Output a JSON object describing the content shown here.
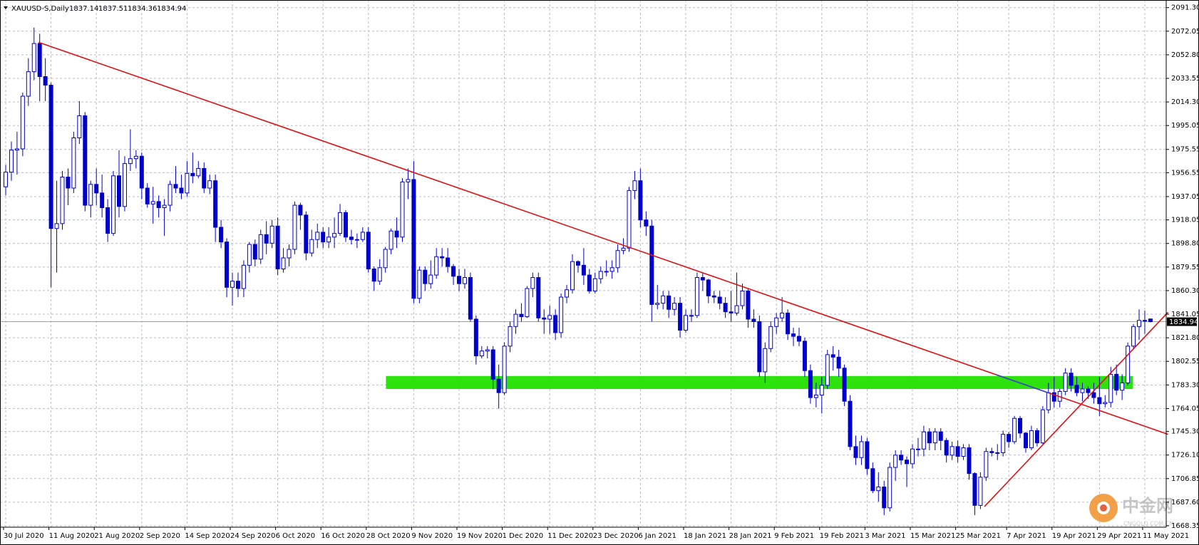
{
  "chart_data": {
    "type": "candlestick",
    "symbol": "XAUUSD-S,Daily",
    "color": "#0000cd",
    "up_fill": "#ffffff",
    "grid": true,
    "ylim": [
      1668.35,
      2091.3
    ],
    "yticks": [
      {
        "value": 2091.3,
        "label": "2091.30"
      },
      2072.05,
      {
        "value": 2052.8,
        "label": "2052.80"
      },
      2033.55,
      {
        "value": 2014.3,
        "label": "2014.30"
      },
      1995.05,
      1975.55,
      1956.55,
      1937.05,
      1918.05,
      {
        "value": 1898.8,
        "label": "1898.80"
      },
      1879.55,
      {
        "value": 1860.3,
        "label": "1860.30"
      },
      1841.05,
      {
        "value": 1821.8,
        "label": "1821.80"
      },
      1802.55,
      {
        "value": 1783.3,
        "label": "1783.30"
      },
      1764.05,
      {
        "value": 1745.3,
        "label": "1745.30"
      },
      {
        "value": 1726.1,
        "label": "1726.10"
      },
      1706.85,
      {
        "value": 1687.6,
        "label": "1687.60"
      },
      1668.35
    ],
    "categories": [
      "30 Jul 2020",
      null,
      null,
      null,
      null,
      null,
      null,
      null,
      "11 Aug 2020",
      null,
      null,
      null,
      null,
      null,
      null,
      null,
      "21 Aug 2020",
      null,
      null,
      null,
      null,
      null,
      null,
      null,
      "2 Sep 2020",
      null,
      null,
      null,
      null,
      null,
      null,
      null,
      "14 Sep 2020",
      null,
      null,
      null,
      null,
      null,
      null,
      null,
      "24 Sep 2020",
      null,
      null,
      null,
      null,
      null,
      null,
      null,
      "6 Oct 2020",
      null,
      null,
      null,
      null,
      null,
      null,
      null,
      "16 Oct 2020",
      null,
      null,
      null,
      null,
      null,
      null,
      null,
      "28 Oct 2020",
      null,
      null,
      null,
      null,
      null,
      null,
      null,
      "9 Nov 2020",
      null,
      null,
      null,
      null,
      null,
      null,
      null,
      "19 Nov 2020",
      null,
      null,
      null,
      null,
      null,
      null,
      null,
      "1 Dec 2020",
      null,
      null,
      null,
      null,
      null,
      null,
      null,
      "11 Dec 2020",
      null,
      null,
      null,
      null,
      null,
      null,
      null,
      "23 Dec 2020",
      null,
      null,
      null,
      null,
      null,
      null,
      null,
      "6 Jan 2021",
      null,
      null,
      null,
      null,
      null,
      null,
      null,
      "18 Jan 2021",
      null,
      null,
      null,
      null,
      null,
      null,
      null,
      "28 Jan 2021",
      null,
      null,
      null,
      null,
      null,
      null,
      null,
      "9 Feb 2021",
      null,
      null,
      null,
      null,
      null,
      null,
      null,
      "19 Feb 2021",
      null,
      null,
      null,
      null,
      null,
      null,
      null,
      "3 Mar 2021",
      null,
      null,
      null,
      null,
      null,
      null,
      null,
      "15 Mar 2021",
      null,
      null,
      null,
      null,
      null,
      null,
      null,
      "25 Mar 2021",
      null,
      null,
      null,
      null,
      null,
      null,
      null,
      null,
      "7 Apr 2021",
      null,
      null,
      null,
      null,
      null,
      null,
      null,
      "19 Apr 2021",
      null,
      null,
      null,
      null,
      null,
      null,
      null,
      "29 Apr 2021",
      null,
      null,
      null,
      null,
      null,
      null,
      null,
      "11 May 2021",
      null
    ],
    "open": [
      1945,
      1957,
      1975,
      1976,
      2019,
      2039,
      2062,
      2035,
      2028,
      1911,
      1915,
      1953,
      1944,
      1985,
      2003,
      1930,
      1947,
      1940,
      1928,
      1907,
      1954,
      1929,
      1964,
      1968,
      1970,
      1944,
      1931,
      1933,
      1928,
      1930,
      1947,
      1944,
      1940,
      1956,
      1954,
      1960,
      1944,
      1950,
      1912,
      1900,
      1863,
      1868,
      1862,
      1881,
      1898,
      1886,
      1906,
      1899,
      1913,
      1878,
      1887,
      1894,
      1930,
      1922,
      1891,
      1902,
      1908,
      1900,
      1904,
      1907,
      1924,
      1904,
      1902,
      1902,
      1908,
      1878,
      1868,
      1879,
      1894,
      1909,
      1904,
      1949,
      1951,
      1854,
      1877,
      1866,
      1873,
      1888,
      1887,
      1880,
      1872,
      1866,
      1871,
      1837,
      1807,
      1811,
      1812,
      1788,
      1777,
      1815,
      1831,
      1841,
      1839,
      1862,
      1871,
      1838,
      1837,
      1840,
      1826,
      1855,
      1861,
      1884,
      1881,
      1873,
      1860,
      1870,
      1876,
      1876,
      1879,
      1893,
      1895,
      1942,
      1950,
      1918,
      1913,
      1849,
      1850,
      1856,
      1845,
      1850,
      1828,
      1840,
      1840,
      1871,
      1869,
      1856,
      1855,
      1850,
      1843,
      1842,
      1848,
      1860,
      1837,
      1835,
      1794,
      1813,
      1831,
      1838,
      1842,
      1825,
      1823,
      1819,
      1795,
      1773,
      1775,
      1783,
      1808,
      1806,
      1797,
      1770,
      1733,
      1724,
      1737,
      1715,
      1697,
      1700,
      1683,
      1716,
      1726,
      1722,
      1719,
      1731,
      1731,
      1745,
      1736,
      1745,
      1738,
      1726,
      1733,
      1725,
      1732,
      1711,
      1685,
      1708,
      1729,
      1728,
      1728,
      1743,
      1737,
      1756,
      1744,
      1732,
      1746,
      1736,
      1763,
      1777,
      1770,
      1778,
      1793,
      1783,
      1777,
      1780,
      1777,
      1773,
      1768,
      1769,
      1792,
      1779,
      1785,
      1815,
      1831,
      1836,
      1837.14
    ],
    "high": [
      1963,
      1982,
      1990,
      2022,
      2050,
      2075,
      2070,
      2050,
      2030,
      1950,
      1958,
      1960,
      1990,
      2015,
      2006,
      1950,
      1960,
      1955,
      1935,
      1958,
      1975,
      1970,
      1992,
      1975,
      1973,
      1948,
      1945,
      1938,
      1935,
      1950,
      1962,
      1955,
      1966,
      1973,
      1966,
      1965,
      1955,
      1955,
      1918,
      1903,
      1875,
      1875,
      1885,
      1900,
      1902,
      1910,
      1917,
      1918,
      1920,
      1895,
      1898,
      1933,
      1932,
      1925,
      1910,
      1915,
      1912,
      1912,
      1920,
      1931,
      1926,
      1910,
      1907,
      1912,
      1912,
      1880,
      1886,
      1896,
      1911,
      1920,
      1952,
      1960,
      1966,
      1880,
      1880,
      1885,
      1895,
      1895,
      1895,
      1882,
      1878,
      1878,
      1875,
      1840,
      1815,
      1815,
      1815,
      1800,
      1818,
      1835,
      1845,
      1850,
      1864,
      1875,
      1875,
      1845,
      1848,
      1845,
      1858,
      1865,
      1890,
      1885,
      1895,
      1878,
      1875,
      1880,
      1885,
      1885,
      1898,
      1903,
      1945,
      1958,
      1960,
      1925,
      1918,
      1865,
      1860,
      1860,
      1855,
      1855,
      1845,
      1845,
      1875,
      1875,
      1870,
      1860,
      1860,
      1855,
      1860,
      1875,
      1866,
      1862,
      1845,
      1840,
      1818,
      1835,
      1842,
      1855,
      1845,
      1830,
      1830,
      1822,
      1800,
      1785,
      1790,
      1812,
      1815,
      1812,
      1800,
      1775,
      1742,
      1742,
      1740,
      1720,
      1712,
      1705,
      1720,
      1730,
      1730,
      1725,
      1735,
      1740,
      1750,
      1748,
      1748,
      1748,
      1740,
      1737,
      1738,
      1735,
      1735,
      1712,
      1712,
      1732,
      1732,
      1735,
      1746,
      1745,
      1758,
      1758,
      1745,
      1750,
      1748,
      1766,
      1785,
      1790,
      1780,
      1797,
      1797,
      1790,
      1785,
      1782,
      1785,
      1790,
      1775,
      1798,
      1800,
      1792,
      1818,
      1833,
      1845,
      1844,
      1837.51
    ],
    "low": [
      1938,
      1950,
      1955,
      1970,
      2011,
      2032,
      2015,
      2015,
      1863,
      1875,
      1910,
      1930,
      1940,
      1980,
      1925,
      1920,
      1930,
      1920,
      1900,
      1905,
      1920,
      1925,
      1958,
      1960,
      1935,
      1928,
      1915,
      1920,
      1905,
      1925,
      1940,
      1935,
      1937,
      1948,
      1952,
      1940,
      1939,
      1900,
      1895,
      1855,
      1848,
      1855,
      1855,
      1875,
      1880,
      1882,
      1890,
      1895,
      1873,
      1875,
      1880,
      1890,
      1910,
      1885,
      1888,
      1895,
      1895,
      1895,
      1895,
      1905,
      1900,
      1898,
      1895,
      1900,
      1875,
      1860,
      1865,
      1875,
      1890,
      1895,
      1900,
      1935,
      1850,
      1850,
      1860,
      1862,
      1870,
      1880,
      1875,
      1865,
      1860,
      1862,
      1835,
      1800,
      1805,
      1805,
      1780,
      1764,
      1775,
      1810,
      1825,
      1835,
      1838,
      1855,
      1835,
      1825,
      1825,
      1820,
      1822,
      1850,
      1858,
      1875,
      1865,
      1858,
      1858,
      1866,
      1872,
      1870,
      1875,
      1890,
      1892,
      1935,
      1912,
      1905,
      1835,
      1845,
      1845,
      1838,
      1840,
      1822,
      1826,
      1835,
      1838,
      1860,
      1850,
      1850,
      1845,
      1838,
      1835,
      1840,
      1845,
      1830,
      1830,
      1790,
      1785,
      1810,
      1825,
      1835,
      1820,
      1815,
      1815,
      1790,
      1768,
      1765,
      1760,
      1780,
      1795,
      1790,
      1766,
      1730,
      1718,
      1718,
      1710,
      1695,
      1688,
      1677,
      1680,
      1705,
      1718,
      1700,
      1715,
      1725,
      1725,
      1730,
      1730,
      1730,
      1720,
      1722,
      1720,
      1722,
      1706,
      1677,
      1682,
      1705,
      1725,
      1722,
      1725,
      1732,
      1735,
      1740,
      1728,
      1730,
      1733,
      1735,
      1760,
      1765,
      1765,
      1775,
      1778,
      1774,
      1770,
      1772,
      1768,
      1758,
      1765,
      1765,
      1775,
      1771,
      1783,
      1813,
      1820,
      1825,
      1834.36
    ],
    "close": [
      1957,
      1975,
      1976,
      2019,
      2039,
      2062,
      2035,
      2028,
      1911,
      1915,
      1953,
      1944,
      1985,
      2003,
      1930,
      1947,
      1940,
      1928,
      1907,
      1954,
      1929,
      1964,
      1968,
      1970,
      1944,
      1931,
      1933,
      1928,
      1930,
      1947,
      1944,
      1940,
      1956,
      1954,
      1960,
      1944,
      1950,
      1912,
      1900,
      1863,
      1868,
      1862,
      1881,
      1898,
      1886,
      1906,
      1899,
      1913,
      1878,
      1887,
      1894,
      1930,
      1922,
      1891,
      1902,
      1908,
      1900,
      1904,
      1907,
      1924,
      1904,
      1902,
      1902,
      1908,
      1878,
      1868,
      1879,
      1894,
      1909,
      1904,
      1949,
      1951,
      1854,
      1877,
      1866,
      1873,
      1888,
      1887,
      1880,
      1872,
      1866,
      1871,
      1837,
      1807,
      1811,
      1812,
      1788,
      1777,
      1815,
      1831,
      1841,
      1839,
      1862,
      1871,
      1838,
      1837,
      1840,
      1826,
      1855,
      1861,
      1884,
      1881,
      1873,
      1860,
      1870,
      1876,
      1876,
      1879,
      1893,
      1895,
      1942,
      1950,
      1918,
      1913,
      1849,
      1850,
      1856,
      1845,
      1850,
      1828,
      1840,
      1840,
      1871,
      1869,
      1856,
      1855,
      1850,
      1843,
      1842,
      1848,
      1860,
      1837,
      1835,
      1794,
      1813,
      1831,
      1838,
      1842,
      1825,
      1823,
      1819,
      1795,
      1773,
      1775,
      1783,
      1808,
      1806,
      1797,
      1770,
      1733,
      1724,
      1737,
      1715,
      1697,
      1700,
      1683,
      1716,
      1726,
      1722,
      1719,
      1731,
      1731,
      1745,
      1736,
      1745,
      1738,
      1726,
      1733,
      1725,
      1732,
      1711,
      1685,
      1708,
      1729,
      1728,
      1728,
      1743,
      1737,
      1756,
      1744,
      1732,
      1746,
      1736,
      1763,
      1777,
      1770,
      1778,
      1793,
      1783,
      1777,
      1780,
      1777,
      1773,
      1768,
      1769,
      1792,
      1779,
      1785,
      1815,
      1831,
      1836,
      1836,
      1834.94
    ],
    "zone": {
      "x": [
        67.1,
        198.9
      ],
      "y": [
        1780,
        1790.6
      ],
      "color": "#22e000"
    },
    "trendlines": [
      {
        "x": [
          5.8,
          205.1
        ],
        "y": [
          2063,
          1743
        ],
        "color": "#e01010"
      },
      {
        "x": [
          172.7,
          205.1
        ],
        "y": [
          1684,
          1842.6
        ],
        "color": "#e01010"
      },
      {
        "x": [
          174.8,
          184.2
        ],
        "y": [
          1791.6,
          1776.5
        ],
        "color": "#3050d0"
      }
    ],
    "price_line_color": "#9aa0a8",
    "watermark": {
      "text": "中金网",
      "sub": "CNGOLD.COM.CN"
    }
  }
}
